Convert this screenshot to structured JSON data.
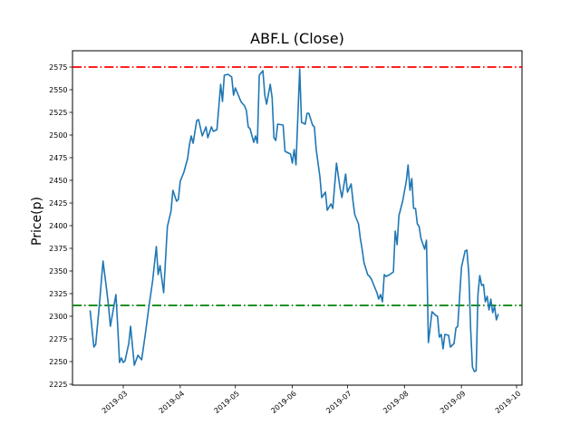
{
  "chart_data": {
    "type": "line",
    "title": "ABF.L (Close)",
    "xlabel": "",
    "ylabel": "Price(p)",
    "grid": false,
    "legend": "none",
    "x_tick_labels": [
      "2019-03",
      "2019-04",
      "2019-05",
      "2019-06",
      "2019-07",
      "2019-08",
      "2019-09",
      "2019-10"
    ],
    "y_ticks": [
      2225,
      2250,
      2275,
      2300,
      2325,
      2350,
      2375,
      2400,
      2425,
      2450,
      2475,
      2500,
      2525,
      2550,
      2575
    ],
    "ylim": [
      2224,
      2593
    ],
    "xlim": [
      "2019-02-01",
      "2019-10-04"
    ],
    "series": [
      {
        "name": "Close",
        "kind": "line",
        "color": "#1f77b4",
        "linestyle": "solid",
        "points": [
          [
            "2019-02-11",
            2306
          ],
          [
            "2019-02-13",
            2266
          ],
          [
            "2019-02-14",
            2269
          ],
          [
            "2019-02-16",
            2312
          ],
          [
            "2019-02-18",
            2361
          ],
          [
            "2019-02-20",
            2329
          ],
          [
            "2019-02-21",
            2311
          ],
          [
            "2019-02-22",
            2289
          ],
          [
            "2019-02-25",
            2324
          ],
          [
            "2019-02-26",
            2289
          ],
          [
            "2019-02-27",
            2249
          ],
          [
            "2019-02-28",
            2254
          ],
          [
            "2019-03-01",
            2249
          ],
          [
            "2019-03-02",
            2251
          ],
          [
            "2019-03-04",
            2270
          ],
          [
            "2019-03-05",
            2289
          ],
          [
            "2019-03-07",
            2246
          ],
          [
            "2019-03-09",
            2257
          ],
          [
            "2019-03-11",
            2252
          ],
          [
            "2019-03-13",
            2280
          ],
          [
            "2019-03-15",
            2311
          ],
          [
            "2019-03-17",
            2339
          ],
          [
            "2019-03-19",
            2377
          ],
          [
            "2019-03-20",
            2346
          ],
          [
            "2019-03-21",
            2356
          ],
          [
            "2019-03-23",
            2326
          ],
          [
            "2019-03-25",
            2399
          ],
          [
            "2019-03-27",
            2416
          ],
          [
            "2019-03-28",
            2439
          ],
          [
            "2019-03-30",
            2427
          ],
          [
            "2019-03-31",
            2429
          ],
          [
            "2019-04-01",
            2449
          ],
          [
            "2019-04-03",
            2459
          ],
          [
            "2019-04-05",
            2474
          ],
          [
            "2019-04-06",
            2489
          ],
          [
            "2019-04-07",
            2499
          ],
          [
            "2019-04-08",
            2491
          ],
          [
            "2019-04-10",
            2516
          ],
          [
            "2019-04-11",
            2517
          ],
          [
            "2019-04-13",
            2499
          ],
          [
            "2019-04-15",
            2509
          ],
          [
            "2019-04-16",
            2497
          ],
          [
            "2019-04-18",
            2509
          ],
          [
            "2019-04-19",
            2504
          ],
          [
            "2019-04-21",
            2506
          ],
          [
            "2019-04-23",
            2556
          ],
          [
            "2019-04-24",
            2537
          ],
          [
            "2019-04-25",
            2566
          ],
          [
            "2019-04-27",
            2567
          ],
          [
            "2019-04-29",
            2564
          ],
          [
            "2019-04-30",
            2544
          ],
          [
            "2019-05-01",
            2552
          ],
          [
            "2019-05-03",
            2542
          ],
          [
            "2019-05-04",
            2537
          ],
          [
            "2019-05-06",
            2532
          ],
          [
            "2019-05-07",
            2527
          ],
          [
            "2019-05-08",
            2509
          ],
          [
            "2019-05-09",
            2507
          ],
          [
            "2019-05-11",
            2492
          ],
          [
            "2019-05-12",
            2499
          ],
          [
            "2019-05-13",
            2491
          ],
          [
            "2019-05-14",
            2566
          ],
          [
            "2019-05-16",
            2571
          ],
          [
            "2019-05-17",
            2544
          ],
          [
            "2019-05-18",
            2534
          ],
          [
            "2019-05-20",
            2556
          ],
          [
            "2019-05-21",
            2541
          ],
          [
            "2019-05-22",
            2497
          ],
          [
            "2019-05-23",
            2494
          ],
          [
            "2019-05-24",
            2512
          ],
          [
            "2019-05-27",
            2511
          ],
          [
            "2019-05-28",
            2482
          ],
          [
            "2019-05-29",
            2481
          ],
          [
            "2019-05-31",
            2479
          ],
          [
            "2019-06-01",
            2469
          ],
          [
            "2019-06-02",
            2484
          ],
          [
            "2019-06-03",
            2467
          ],
          [
            "2019-06-05",
            2573
          ],
          [
            "2019-06-06",
            2514
          ],
          [
            "2019-06-08",
            2512
          ],
          [
            "2019-06-09",
            2524
          ],
          [
            "2019-06-10",
            2524
          ],
          [
            "2019-06-12",
            2511
          ],
          [
            "2019-06-13",
            2509
          ],
          [
            "2019-06-14",
            2484
          ],
          [
            "2019-06-16",
            2454
          ],
          [
            "2019-06-17",
            2431
          ],
          [
            "2019-06-19",
            2437
          ],
          [
            "2019-06-20",
            2417
          ],
          [
            "2019-06-22",
            2424
          ],
          [
            "2019-06-23",
            2419
          ],
          [
            "2019-06-25",
            2469
          ],
          [
            "2019-06-27",
            2441
          ],
          [
            "2019-06-28",
            2431
          ],
          [
            "2019-06-30",
            2457
          ],
          [
            "2019-07-01",
            2437
          ],
          [
            "2019-07-03",
            2446
          ],
          [
            "2019-07-04",
            2427
          ],
          [
            "2019-07-05",
            2412
          ],
          [
            "2019-07-07",
            2402
          ],
          [
            "2019-07-08",
            2386
          ],
          [
            "2019-07-09",
            2374
          ],
          [
            "2019-07-10",
            2359
          ],
          [
            "2019-07-12",
            2346
          ],
          [
            "2019-07-13",
            2344
          ],
          [
            "2019-07-14",
            2341
          ],
          [
            "2019-07-15",
            2336
          ],
          [
            "2019-07-17",
            2326
          ],
          [
            "2019-07-18",
            2319
          ],
          [
            "2019-07-19",
            2324
          ],
          [
            "2019-07-20",
            2316
          ],
          [
            "2019-07-21",
            2346
          ],
          [
            "2019-07-22",
            2344
          ],
          [
            "2019-07-24",
            2346
          ],
          [
            "2019-07-26",
            2349
          ],
          [
            "2019-07-27",
            2394
          ],
          [
            "2019-07-28",
            2379
          ],
          [
            "2019-07-29",
            2411
          ],
          [
            "2019-07-31",
            2427
          ],
          [
            "2019-08-02",
            2449
          ],
          [
            "2019-08-03",
            2467
          ],
          [
            "2019-08-04",
            2439
          ],
          [
            "2019-08-05",
            2452
          ],
          [
            "2019-08-06",
            2419
          ],
          [
            "2019-08-07",
            2419
          ],
          [
            "2019-08-08",
            2402
          ],
          [
            "2019-08-09",
            2399
          ],
          [
            "2019-08-10",
            2386
          ],
          [
            "2019-08-12",
            2374
          ],
          [
            "2019-08-13",
            2384
          ],
          [
            "2019-08-14",
            2271
          ],
          [
            "2019-08-16",
            2305
          ],
          [
            "2019-08-18",
            2301
          ],
          [
            "2019-08-19",
            2300
          ],
          [
            "2019-08-20",
            2277
          ],
          [
            "2019-08-21",
            2280
          ],
          [
            "2019-08-22",
            2264
          ],
          [
            "2019-08-23",
            2280
          ],
          [
            "2019-08-25",
            2279
          ],
          [
            "2019-08-26",
            2266
          ],
          [
            "2019-08-28",
            2270
          ],
          [
            "2019-08-29",
            2287
          ],
          [
            "2019-08-30",
            2289
          ],
          [
            "2019-09-01",
            2354
          ],
          [
            "2019-09-03",
            2372
          ],
          [
            "2019-09-04",
            2373
          ],
          [
            "2019-09-05",
            2347
          ],
          [
            "2019-09-06",
            2287
          ],
          [
            "2019-09-07",
            2244
          ],
          [
            "2019-09-08",
            2239
          ],
          [
            "2019-09-09",
            2240
          ],
          [
            "2019-09-10",
            2324
          ],
          [
            "2019-09-11",
            2345
          ],
          [
            "2019-09-12",
            2334
          ],
          [
            "2019-09-13",
            2335
          ],
          [
            "2019-09-14",
            2316
          ],
          [
            "2019-09-15",
            2322
          ],
          [
            "2019-09-16",
            2307
          ],
          [
            "2019-09-17",
            2319
          ],
          [
            "2019-09-18",
            2304
          ],
          [
            "2019-09-19",
            2311
          ],
          [
            "2019-09-20",
            2296
          ],
          [
            "2019-09-21",
            2302
          ]
        ]
      },
      {
        "name": "red-dashdot-hline",
        "kind": "hline",
        "color": "#ff0000",
        "linestyle": "dashdot",
        "value": 2575
      },
      {
        "name": "green-dashdot-hline",
        "kind": "hline",
        "color": "#008000",
        "linestyle": "dashdot",
        "value": 2312
      }
    ]
  }
}
